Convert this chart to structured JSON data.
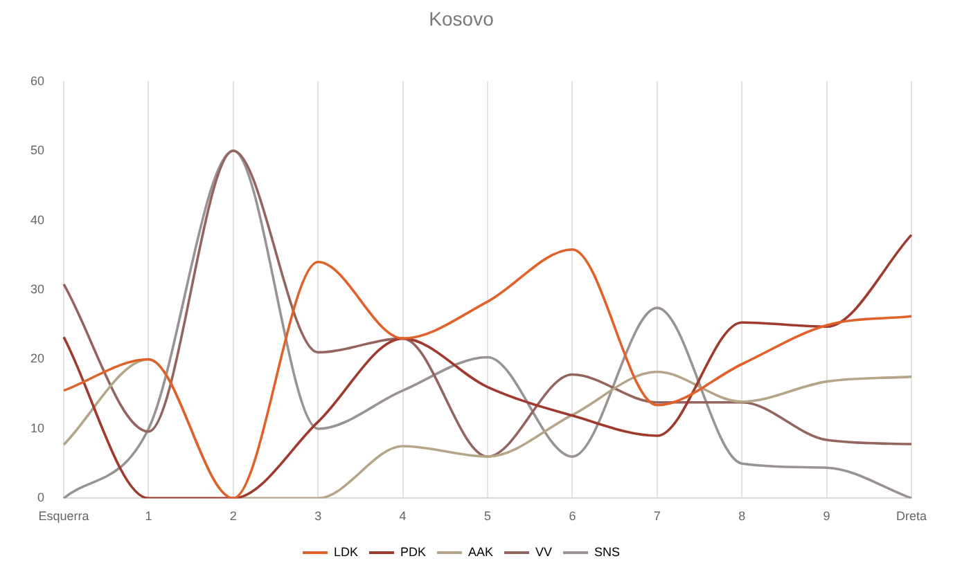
{
  "chart_data": {
    "type": "line",
    "title": "Kosovo",
    "categories": [
      "Esquerra",
      "1",
      "2",
      "3",
      "4",
      "5",
      "6",
      "7",
      "8",
      "9",
      "Dreta"
    ],
    "series": [
      {
        "name": "LDK",
        "color": "#e0622a",
        "values": [
          15.5,
          20,
          0,
          34,
          23,
          28.3,
          35.8,
          13.4,
          19.3,
          24.9,
          26.2
        ]
      },
      {
        "name": "PDK",
        "color": "#9e3a2e",
        "values": [
          23.2,
          0,
          0,
          11,
          23,
          16,
          11.9,
          9,
          25.3,
          24.7,
          37.9
        ]
      },
      {
        "name": "AAK",
        "color": "#b5a689",
        "values": [
          7.7,
          20,
          0,
          0,
          7.5,
          6,
          12,
          18.2,
          13.9,
          16.8,
          17.5
        ]
      },
      {
        "name": "VV",
        "color": "#94655e",
        "values": [
          30.8,
          9.6,
          50,
          21,
          23,
          6,
          17.8,
          13.8,
          13.8,
          8.4,
          7.8
        ]
      },
      {
        "name": "SNS",
        "color": "#999393",
        "values": [
          0,
          10,
          50,
          10,
          15.5,
          20.3,
          6,
          27.4,
          5,
          4.4,
          0
        ]
      }
    ],
    "ylim": [
      0,
      60
    ],
    "yticks": [
      0,
      10,
      20,
      30,
      40,
      50,
      60
    ],
    "grid": "x",
    "legend": "bottom",
    "marker": "none",
    "line_style": "solid"
  }
}
